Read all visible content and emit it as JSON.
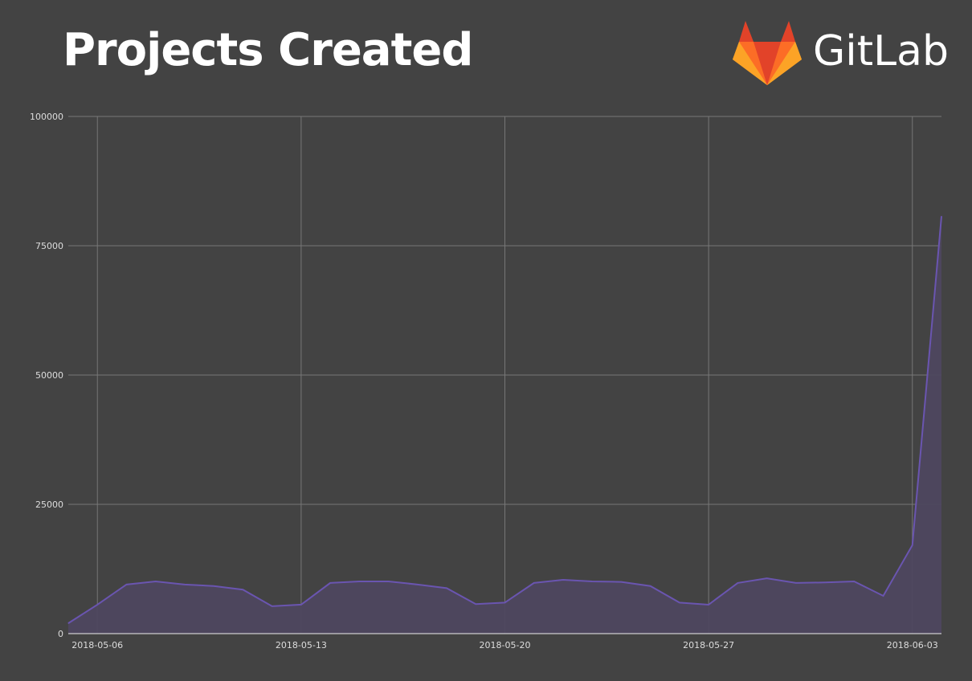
{
  "chart_data": {
    "type": "area",
    "title": "Projects Created",
    "xlabel": "",
    "ylabel": "",
    "ylim": [
      0,
      100000
    ],
    "yticks": [
      "0",
      "25000",
      "50000",
      "75000",
      "100000"
    ],
    "xticks": [
      "2018-05-06",
      "2018-05-13",
      "2018-05-20",
      "2018-05-27",
      "2018-06-03"
    ],
    "x_start": "2018-05-05",
    "x_end": "2018-06-04",
    "grid": true,
    "series": [
      {
        "name": "Projects Created",
        "color": "#6a55b0",
        "fill": "#4e475f",
        "values": [
          2000,
          5600,
          9500,
          10100,
          9500,
          9200,
          8500,
          5300,
          5600,
          9800,
          10100,
          10100,
          9500,
          8800,
          5700,
          6000,
          9800,
          10400,
          10100,
          10000,
          9200,
          6000,
          5600,
          9800,
          10700,
          9800,
          9900,
          10100,
          7300,
          17100,
          80700
        ]
      }
    ]
  },
  "logo": {
    "text": "GitLab"
  },
  "colors": {
    "background": "#434343",
    "grid": "#777777"
  }
}
